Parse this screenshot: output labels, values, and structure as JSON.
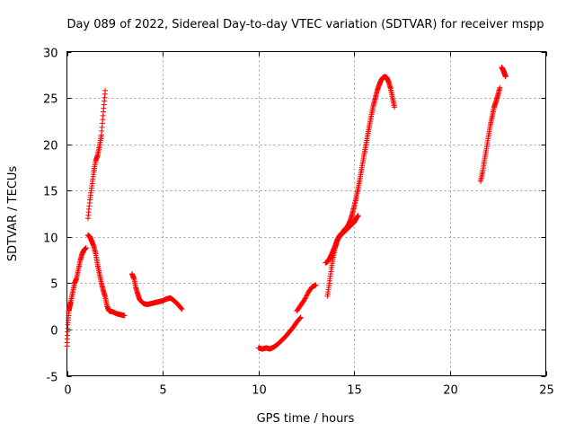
{
  "chart_data": {
    "type": "scatter",
    "title": "Day 089 of 2022, Sidereal Day-to-day VTEC variation (SDTVAR) for receiver mspp",
    "xlabel": "GPS time / hours",
    "ylabel": "SDTVAR / TECUs",
    "xlim": [
      0,
      25
    ],
    "ylim": [
      -5,
      30
    ],
    "xticks": [
      0,
      5,
      10,
      15,
      20,
      25
    ],
    "yticks": [
      -5,
      0,
      5,
      10,
      15,
      20,
      25,
      30
    ],
    "xtick_labels": [
      "0",
      "5",
      "10",
      "15",
      "20",
      "25"
    ],
    "ytick_labels": [
      "-5",
      "0",
      "5",
      "10",
      "15",
      "20",
      "25",
      "30"
    ],
    "grid": true,
    "marker": "+",
    "color": "#ff0000",
    "series": [
      {
        "name": "SDTVAR",
        "segments": [
          {
            "x": [
              0.0,
              0.05,
              0.1,
              0.15,
              0.2,
              0.3,
              0.4,
              0.5,
              0.6,
              0.7,
              0.8,
              0.9,
              1.0
            ],
            "y": [
              -1.8,
              0.5,
              2.0,
              2.5,
              3.0,
              4.0,
              5.0,
              5.5,
              6.5,
              7.5,
              8.2,
              8.6,
              8.8
            ]
          },
          {
            "x": [
              1.1,
              1.2,
              1.3,
              1.4,
              1.5,
              1.6,
              1.7,
              1.8,
              1.9,
              2.0
            ],
            "y": [
              12.0,
              14.0,
              15.5,
              17.0,
              18.2,
              18.8,
              19.8,
              21.0,
              23.5,
              25.8
            ]
          },
          {
            "x": [
              1.1,
              1.2,
              1.3,
              1.4,
              1.5,
              1.6,
              1.7,
              1.8,
              1.9,
              2.0,
              2.1,
              2.2,
              2.4,
              2.6,
              2.8,
              3.0
            ],
            "y": [
              10.2,
              10.0,
              9.5,
              9.0,
              8.2,
              7.0,
              6.0,
              5.0,
              4.2,
              3.5,
              2.5,
              2.0,
              1.9,
              1.7,
              1.6,
              1.5
            ]
          },
          {
            "x": [
              3.4,
              3.5,
              3.6,
              3.7,
              3.8,
              4.0,
              4.2,
              4.4,
              4.6,
              4.8,
              5.0,
              5.2,
              5.4,
              5.6,
              5.8,
              6.0
            ],
            "y": [
              6.0,
              5.5,
              4.5,
              3.8,
              3.2,
              2.8,
              2.7,
              2.8,
              2.9,
              3.0,
              3.1,
              3.3,
              3.4,
              3.1,
              2.7,
              2.2
            ]
          },
          {
            "x": [
              10.0,
              10.2,
              10.4,
              10.6,
              10.8,
              11.0,
              11.2,
              11.4,
              11.6,
              11.8,
              12.0,
              12.2
            ],
            "y": [
              -2.0,
              -2.1,
              -2.0,
              -2.1,
              -1.9,
              -1.6,
              -1.2,
              -0.8,
              -0.3,
              0.2,
              0.8,
              1.3
            ]
          },
          {
            "x": [
              12.0,
              12.2,
              12.4,
              12.6,
              12.8,
              13.0
            ],
            "y": [
              2.0,
              2.6,
              3.2,
              4.0,
              4.6,
              4.8
            ]
          },
          {
            "x": [
              13.5,
              13.6,
              13.7,
              13.8,
              13.9,
              14.0,
              14.1,
              14.2,
              14.3,
              14.4,
              14.5,
              14.6,
              14.7,
              14.8,
              14.9,
              15.0,
              15.1,
              15.2
            ],
            "y": [
              7.2,
              7.3,
              7.6,
              8.0,
              8.5,
              9.0,
              9.6,
              10.0,
              10.2,
              10.4,
              10.6,
              10.8,
              11.0,
              11.2,
              11.4,
              11.6,
              12.0,
              12.3
            ]
          },
          {
            "x": [
              13.6,
              13.7,
              13.8,
              13.9,
              14.0,
              14.1,
              14.2,
              14.3,
              14.4,
              14.5,
              14.6,
              14.7,
              14.8,
              14.9,
              15.0,
              15.1,
              15.2,
              15.3,
              15.4,
              15.5,
              15.6,
              15.7,
              15.8,
              15.9,
              16.0,
              16.1,
              16.2,
              16.3,
              16.4,
              16.5,
              16.6,
              16.7,
              16.8,
              16.9,
              17.0,
              17.1
            ],
            "y": [
              3.6,
              5.0,
              6.5,
              7.8,
              8.8,
              9.5,
              10.0,
              10.3,
              10.5,
              10.8,
              11.0,
              11.3,
              11.8,
              12.5,
              13.3,
              14.2,
              15.2,
              16.3,
              17.5,
              18.7,
              19.8,
              21.0,
              22.1,
              23.2,
              24.2,
              25.0,
              25.8,
              26.4,
              26.9,
              27.2,
              27.3,
              27.2,
              26.7,
              26.0,
              25.0,
              24.0
            ]
          },
          {
            "x": [
              21.6,
              21.7,
              21.8,
              21.9,
              22.0,
              22.1,
              22.2,
              22.3,
              22.4,
              22.5,
              22.6
            ],
            "y": [
              16.0,
              17.0,
              18.3,
              19.5,
              20.8,
              22.0,
              23.0,
              24.0,
              24.6,
              25.3,
              26.1
            ]
          },
          {
            "x": [
              22.7,
              22.75,
              22.8,
              22.85,
              22.9
            ],
            "y": [
              28.3,
              28.1,
              27.9,
              27.6,
              27.3
            ]
          }
        ]
      }
    ]
  }
}
